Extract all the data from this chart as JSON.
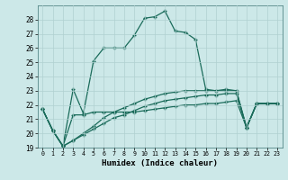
{
  "xlabel": "Humidex (Indice chaleur)",
  "bg_color": "#cce8e8",
  "line_color": "#1a6b5a",
  "grid_color": "#b0d0d0",
  "xlim": [
    -0.5,
    23.5
  ],
  "ylim": [
    19,
    29
  ],
  "xticks": [
    0,
    1,
    2,
    3,
    4,
    5,
    6,
    7,
    8,
    9,
    10,
    11,
    12,
    13,
    14,
    15,
    16,
    17,
    18,
    19,
    20,
    21,
    22,
    23
  ],
  "yticks": [
    19,
    20,
    21,
    22,
    23,
    24,
    25,
    26,
    27,
    28
  ],
  "series": [
    [
      21.7,
      20.2,
      19.1,
      23.1,
      21.4,
      25.1,
      26.0,
      26.0,
      26.0,
      26.9,
      28.1,
      28.2,
      28.6,
      27.2,
      27.1,
      26.6,
      23.1,
      23.0,
      23.1,
      23.0,
      20.4,
      22.1,
      22.1,
      22.1
    ],
    [
      21.7,
      20.2,
      19.1,
      21.3,
      21.3,
      21.5,
      21.5,
      21.5,
      21.5,
      21.5,
      21.6,
      21.7,
      21.8,
      21.9,
      22.0,
      22.0,
      22.1,
      22.1,
      22.2,
      22.3,
      20.4,
      22.1,
      22.1,
      22.1
    ],
    [
      21.7,
      20.2,
      19.1,
      19.5,
      20.0,
      20.5,
      21.1,
      21.5,
      21.8,
      22.1,
      22.4,
      22.6,
      22.8,
      22.9,
      23.0,
      23.0,
      23.0,
      23.0,
      23.0,
      23.0,
      20.4,
      22.1,
      22.1,
      22.1
    ],
    [
      21.7,
      20.2,
      19.1,
      19.5,
      19.9,
      20.3,
      20.7,
      21.1,
      21.3,
      21.6,
      21.9,
      22.1,
      22.3,
      22.4,
      22.5,
      22.6,
      22.7,
      22.7,
      22.8,
      22.8,
      20.4,
      22.1,
      22.1,
      22.1
    ]
  ]
}
